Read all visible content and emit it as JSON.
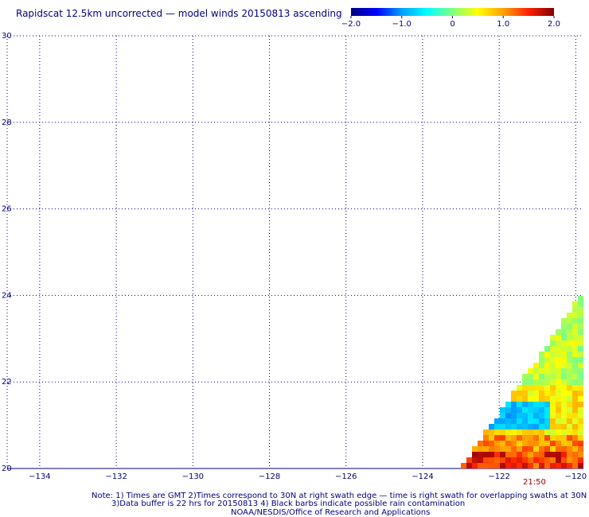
{
  "title": "Rapidscat 12.5km uncorrected — model winds 20150813 ascending",
  "colorbar": {
    "tick_labels": [
      "−2.0",
      "−1.0",
      "0",
      "1.0",
      "2.0"
    ],
    "values": [
      -2.0,
      -1.0,
      0,
      1.0,
      2.0
    ],
    "min": -2.0,
    "max": 2.0,
    "colors": [
      "#000080",
      "#0000ff",
      "#00a0ff",
      "#00ffff",
      "#80ff80",
      "#ffff00",
      "#ffa000",
      "#ff2000",
      "#800000"
    ]
  },
  "map": {
    "lat_labels": [
      "20",
      "22",
      "24",
      "26",
      "28",
      "30"
    ],
    "lat_values": [
      20,
      22,
      24,
      26,
      28,
      30
    ],
    "lon_labels": [
      "−134",
      "−132",
      "−130",
      "−128",
      "−126",
      "−124",
      "−122",
      "−120"
    ],
    "lon_values": [
      -134,
      -132,
      -130,
      -128,
      -126,
      -124,
      -122,
      -120
    ],
    "grid_color": "#000080"
  },
  "swath_time": "21:50",
  "notes": [
    "Note: 1) Times are GMT 2)Times correspond to 30N at right swath edge — time is right swath for overlapping swaths at 30N",
    "3)Data buffer is 22 hrs for 20150813 4) Black barbs indicate possible rain contamination",
    "NOAA/NESDIS/Office of Research and Applications"
  ]
}
